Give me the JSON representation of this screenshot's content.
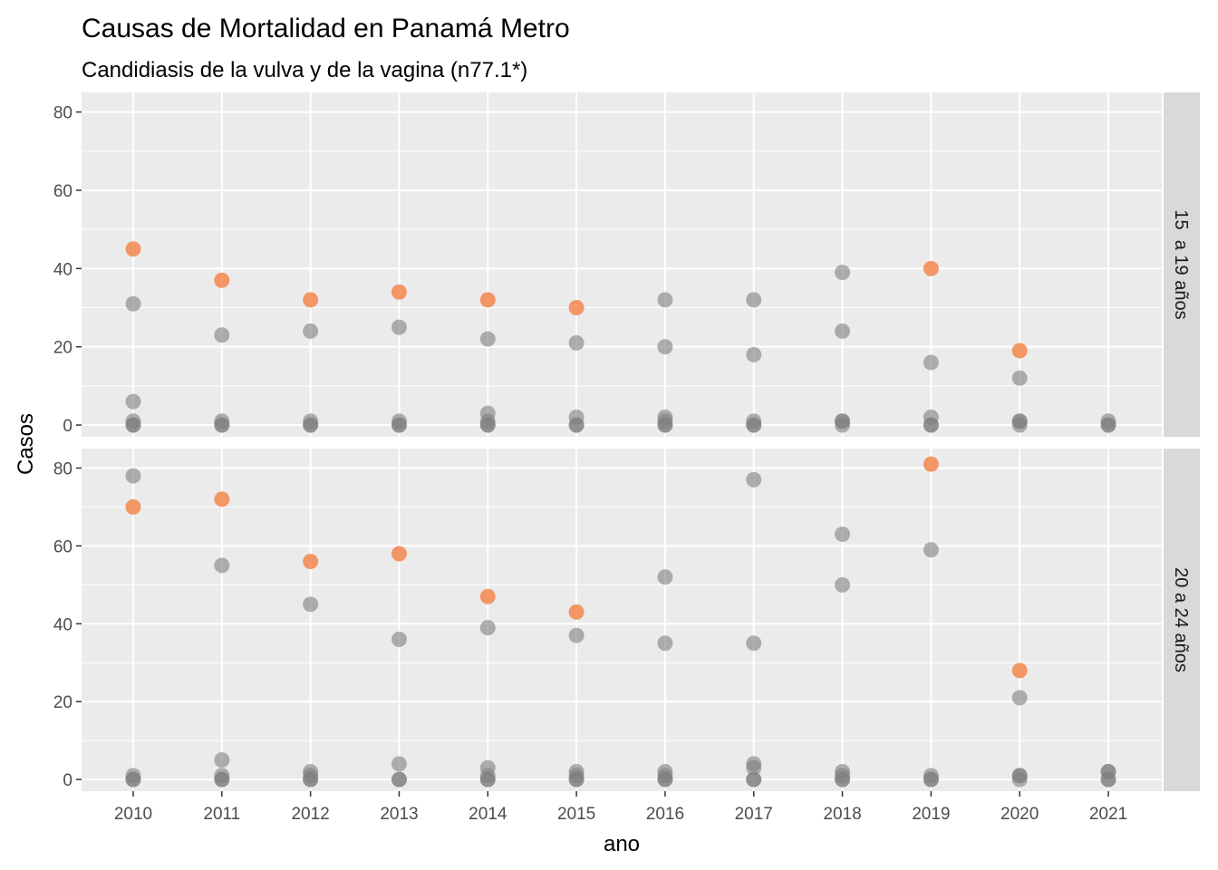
{
  "chart_data": {
    "type": "scatter",
    "title": "Causas de Mortalidad en Panamá Metro",
    "subtitle": "Candidiasis de la vulva y de la vagina (n77.1*)",
    "xlabel": "ano",
    "ylabel": "Casos",
    "x_ticks": [
      "2010",
      "2011",
      "2012",
      "2013",
      "2014",
      "2015",
      "2016",
      "2017",
      "2018",
      "2019",
      "2020",
      "2021"
    ],
    "y_ticks": [
      "0",
      "20",
      "40",
      "60",
      "80"
    ],
    "ylim": [
      -3,
      85
    ],
    "grid": true,
    "colors": {
      "highlight": "#F4874F",
      "other": "#7F7F7F",
      "panel_bg": "#EBEBEB",
      "strip_bg": "#D9D9D9",
      "grid": "#FFFFFF"
    },
    "facets": [
      {
        "label": "15  a 19 años",
        "highlight": [
          [
            2010,
            45
          ],
          [
            2011,
            37
          ],
          [
            2012,
            32
          ],
          [
            2013,
            34
          ],
          [
            2014,
            32
          ],
          [
            2015,
            30
          ],
          [
            2019,
            40
          ],
          [
            2020,
            19
          ]
        ],
        "others": [
          [
            2010,
            31
          ],
          [
            2010,
            6
          ],
          [
            2010,
            1
          ],
          [
            2010,
            0
          ],
          [
            2010,
            0
          ],
          [
            2011,
            23
          ],
          [
            2011,
            1
          ],
          [
            2011,
            0
          ],
          [
            2011,
            0
          ],
          [
            2012,
            24
          ],
          [
            2012,
            1
          ],
          [
            2012,
            0
          ],
          [
            2012,
            0
          ],
          [
            2013,
            25
          ],
          [
            2013,
            1
          ],
          [
            2013,
            0
          ],
          [
            2013,
            0
          ],
          [
            2014,
            22
          ],
          [
            2014,
            3
          ],
          [
            2014,
            1
          ],
          [
            2014,
            0
          ],
          [
            2014,
            0
          ],
          [
            2015,
            21
          ],
          [
            2015,
            2
          ],
          [
            2015,
            0
          ],
          [
            2015,
            0
          ],
          [
            2016,
            32
          ],
          [
            2016,
            20
          ],
          [
            2016,
            2
          ],
          [
            2016,
            1
          ],
          [
            2016,
            0
          ],
          [
            2016,
            0
          ],
          [
            2017,
            32
          ],
          [
            2017,
            18
          ],
          [
            2017,
            1
          ],
          [
            2017,
            0
          ],
          [
            2017,
            0
          ],
          [
            2018,
            39
          ],
          [
            2018,
            24
          ],
          [
            2018,
            1
          ],
          [
            2018,
            1
          ],
          [
            2018,
            0
          ],
          [
            2019,
            16
          ],
          [
            2019,
            2
          ],
          [
            2019,
            0
          ],
          [
            2019,
            0
          ],
          [
            2020,
            12
          ],
          [
            2020,
            1
          ],
          [
            2020,
            1
          ],
          [
            2020,
            0
          ],
          [
            2021,
            1
          ],
          [
            2021,
            0
          ],
          [
            2021,
            0
          ]
        ]
      },
      {
        "label": "20 a 24 años",
        "highlight": [
          [
            2010,
            70
          ],
          [
            2011,
            72
          ],
          [
            2012,
            56
          ],
          [
            2013,
            58
          ],
          [
            2014,
            47
          ],
          [
            2015,
            43
          ],
          [
            2019,
            81
          ],
          [
            2020,
            28
          ]
        ],
        "others": [
          [
            2010,
            78
          ],
          [
            2010,
            1
          ],
          [
            2010,
            0
          ],
          [
            2010,
            0
          ],
          [
            2011,
            55
          ],
          [
            2011,
            5
          ],
          [
            2011,
            1
          ],
          [
            2011,
            0
          ],
          [
            2011,
            0
          ],
          [
            2012,
            45
          ],
          [
            2012,
            2
          ],
          [
            2012,
            1
          ],
          [
            2012,
            0
          ],
          [
            2012,
            0
          ],
          [
            2013,
            36
          ],
          [
            2013,
            4
          ],
          [
            2013,
            0
          ],
          [
            2013,
            0
          ],
          [
            2014,
            39
          ],
          [
            2014,
            3
          ],
          [
            2014,
            1
          ],
          [
            2014,
            0
          ],
          [
            2014,
            0
          ],
          [
            2015,
            37
          ],
          [
            2015,
            2
          ],
          [
            2015,
            1
          ],
          [
            2015,
            0
          ],
          [
            2015,
            0
          ],
          [
            2016,
            52
          ],
          [
            2016,
            35
          ],
          [
            2016,
            2
          ],
          [
            2016,
            1
          ],
          [
            2016,
            0
          ],
          [
            2016,
            0
          ],
          [
            2017,
            77
          ],
          [
            2017,
            35
          ],
          [
            2017,
            4
          ],
          [
            2017,
            3
          ],
          [
            2017,
            0
          ],
          [
            2017,
            0
          ],
          [
            2018,
            63
          ],
          [
            2018,
            50
          ],
          [
            2018,
            2
          ],
          [
            2018,
            1
          ],
          [
            2018,
            0
          ],
          [
            2018,
            0
          ],
          [
            2019,
            59
          ],
          [
            2019,
            1
          ],
          [
            2019,
            0
          ],
          [
            2019,
            0
          ],
          [
            2020,
            21
          ],
          [
            2020,
            1
          ],
          [
            2020,
            1
          ],
          [
            2020,
            0
          ],
          [
            2021,
            2
          ],
          [
            2021,
            2
          ],
          [
            2021,
            0
          ],
          [
            2021,
            0
          ]
        ]
      }
    ]
  }
}
